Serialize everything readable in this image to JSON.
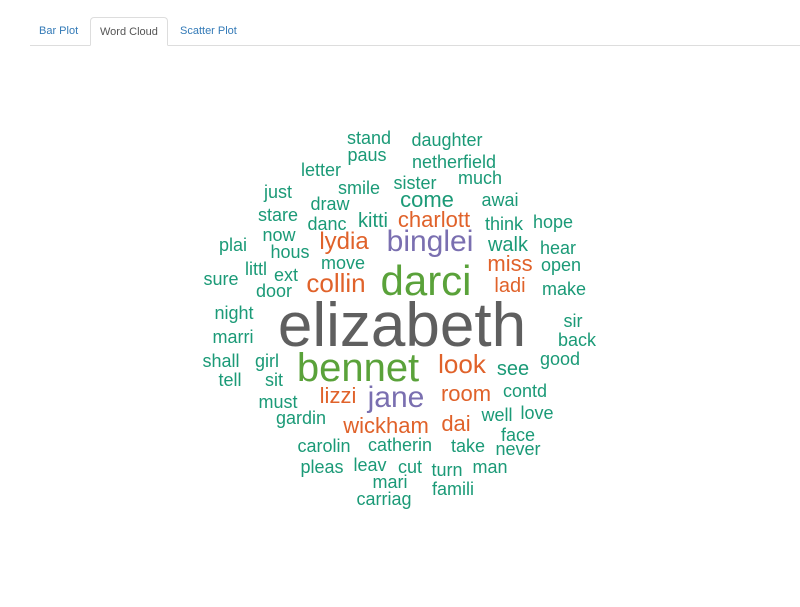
{
  "tabs": [
    {
      "label": "Bar Plot",
      "active": false
    },
    {
      "label": "Word Cloud",
      "active": true
    },
    {
      "label": "Scatter Plot",
      "active": false
    }
  ],
  "palette": {
    "gray": "#5f5f5f",
    "green": "#5aa23a",
    "purple": "#7a6fb0",
    "orange": "#e0622a",
    "teal": "#1b9a77"
  },
  "wordcloud": [
    {
      "text": "elizabeth",
      "color": "gray"
    },
    {
      "text": "bennet",
      "color": "green"
    },
    {
      "text": "darci",
      "color": "green"
    },
    {
      "text": "binglei",
      "color": "purple"
    },
    {
      "text": "jane",
      "color": "purple"
    },
    {
      "text": "collin",
      "color": "orange"
    },
    {
      "text": "lydia",
      "color": "orange"
    },
    {
      "text": "look",
      "color": "orange"
    },
    {
      "text": "miss",
      "color": "orange"
    },
    {
      "text": "charlott",
      "color": "orange"
    },
    {
      "text": "lizzi",
      "color": "orange"
    },
    {
      "text": "room",
      "color": "orange"
    },
    {
      "text": "wickham",
      "color": "orange"
    },
    {
      "text": "dai",
      "color": "orange"
    },
    {
      "text": "ladi",
      "color": "orange"
    },
    {
      "text": "stand",
      "color": "teal"
    },
    {
      "text": "daughter",
      "color": "teal"
    },
    {
      "text": "paus",
      "color": "teal"
    },
    {
      "text": "netherfield",
      "color": "teal"
    },
    {
      "text": "letter",
      "color": "teal"
    },
    {
      "text": "much",
      "color": "teal"
    },
    {
      "text": "smile",
      "color": "teal"
    },
    {
      "text": "sister",
      "color": "teal"
    },
    {
      "text": "just",
      "color": "teal"
    },
    {
      "text": "draw",
      "color": "teal"
    },
    {
      "text": "come",
      "color": "teal"
    },
    {
      "text": "awai",
      "color": "teal"
    },
    {
      "text": "stare",
      "color": "teal"
    },
    {
      "text": "kitti",
      "color": "teal"
    },
    {
      "text": "danc",
      "color": "teal"
    },
    {
      "text": "think",
      "color": "teal"
    },
    {
      "text": "hope",
      "color": "teal"
    },
    {
      "text": "now",
      "color": "teal"
    },
    {
      "text": "plai",
      "color": "teal"
    },
    {
      "text": "hous",
      "color": "teal"
    },
    {
      "text": "walk",
      "color": "teal"
    },
    {
      "text": "hear",
      "color": "teal"
    },
    {
      "text": "move",
      "color": "teal"
    },
    {
      "text": "littl",
      "color": "teal"
    },
    {
      "text": "open",
      "color": "teal"
    },
    {
      "text": "sure",
      "color": "teal"
    },
    {
      "text": "ext",
      "color": "teal"
    },
    {
      "text": "door",
      "color": "teal"
    },
    {
      "text": "make",
      "color": "teal"
    },
    {
      "text": "night",
      "color": "teal"
    },
    {
      "text": "sir",
      "color": "teal"
    },
    {
      "text": "marri",
      "color": "teal"
    },
    {
      "text": "back",
      "color": "teal"
    },
    {
      "text": "shall",
      "color": "teal"
    },
    {
      "text": "girl",
      "color": "teal"
    },
    {
      "text": "good",
      "color": "teal"
    },
    {
      "text": "tell",
      "color": "teal"
    },
    {
      "text": "sit",
      "color": "teal"
    },
    {
      "text": "see",
      "color": "teal"
    },
    {
      "text": "contd",
      "color": "teal"
    },
    {
      "text": "must",
      "color": "teal"
    },
    {
      "text": "gardin",
      "color": "teal"
    },
    {
      "text": "well",
      "color": "teal"
    },
    {
      "text": "love",
      "color": "teal"
    },
    {
      "text": "face",
      "color": "teal"
    },
    {
      "text": "carolin",
      "color": "teal"
    },
    {
      "text": "catherin",
      "color": "teal"
    },
    {
      "text": "take",
      "color": "teal"
    },
    {
      "text": "never",
      "color": "teal"
    },
    {
      "text": "pleas",
      "color": "teal"
    },
    {
      "text": "leav",
      "color": "teal"
    },
    {
      "text": "cut",
      "color": "teal"
    },
    {
      "text": "turn",
      "color": "teal"
    },
    {
      "text": "man",
      "color": "teal"
    },
    {
      "text": "mari",
      "color": "teal"
    },
    {
      "text": "famili",
      "color": "teal"
    },
    {
      "text": "carriag",
      "color": "teal"
    }
  ]
}
